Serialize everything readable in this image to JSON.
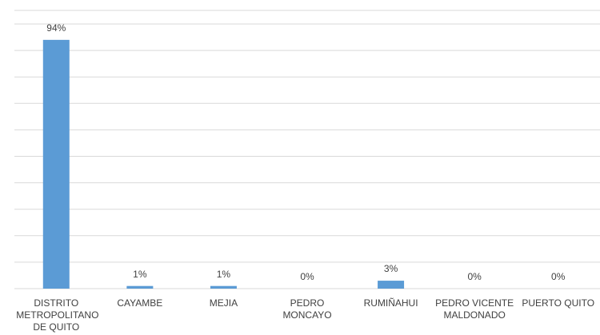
{
  "chart_data": {
    "type": "bar",
    "categories": [
      "DISTRITO METROPOLITANO DE QUITO",
      "CAYAMBE",
      "MEJIA",
      "PEDRO MONCAYO",
      "RUMIÑAHUI",
      "PEDRO VICENTE MALDONADO",
      "PUERTO QUITO"
    ],
    "values": [
      94,
      1,
      1,
      0,
      3,
      0,
      0
    ],
    "value_labels": [
      "94%",
      "1%",
      "1%",
      "0%",
      "3%",
      "0%",
      "0%"
    ],
    "color": "#5b9bd5",
    "ylim": [
      0,
      100
    ],
    "yticks": [
      0,
      10,
      20,
      30,
      40,
      50,
      60,
      70,
      80,
      90,
      100
    ],
    "grid": true
  }
}
